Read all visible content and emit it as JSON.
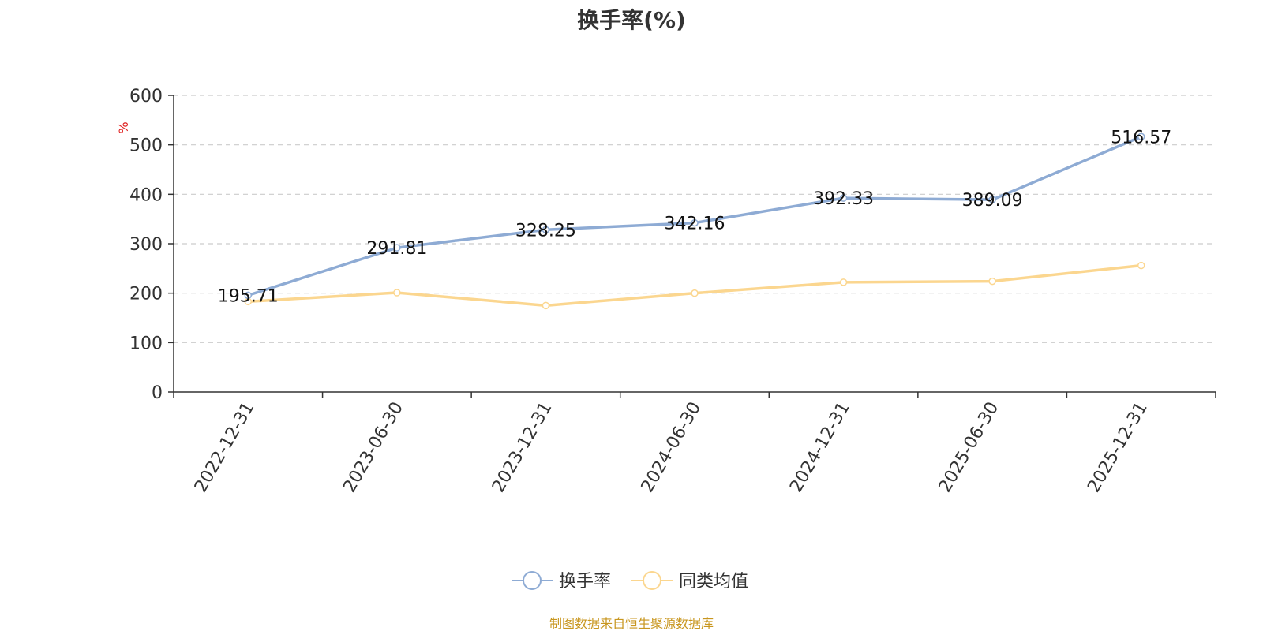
{
  "chart_data": {
    "type": "line",
    "title": "换手率(%)",
    "ylabel": "%",
    "xlabel": "",
    "ylim": [
      0,
      600
    ],
    "yticks": [
      0,
      100,
      200,
      300,
      400,
      500,
      600
    ],
    "categories": [
      "2022-12-31",
      "2023-06-30",
      "2023-12-31",
      "2024-06-30",
      "2024-12-31",
      "2025-06-30",
      "2025-12-31"
    ],
    "series": [
      {
        "name": "换手率",
        "values": [
          195.71,
          291.81,
          328.25,
          342.16,
          392.33,
          389.09,
          516.57
        ],
        "labels": [
          "195.71",
          "291.81",
          "328.25",
          "342.16",
          "392.33",
          "389.09",
          "516.57"
        ],
        "color": "#8eabd4"
      },
      {
        "name": "同类均值",
        "values": [
          183,
          201,
          175,
          200,
          222,
          224,
          256
        ],
        "color": "#fbd68f"
      }
    ],
    "grid": true,
    "legend_position": "bottom-center"
  },
  "source_note": "制图数据来自恒生聚源数据库",
  "colors": {
    "axis": "#333333",
    "grid": "#cccccc",
    "ylabel": "#e02020",
    "source": "#c8961e"
  }
}
